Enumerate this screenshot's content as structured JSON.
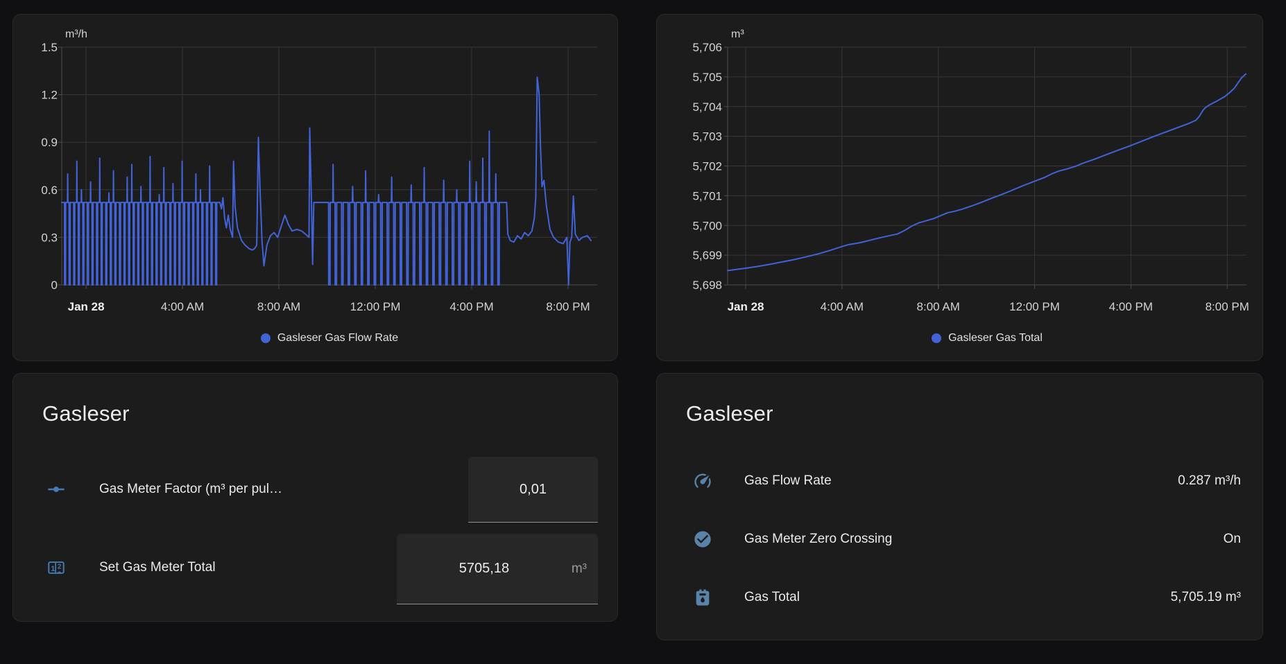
{
  "colors": {
    "series_blue": "#4263d8",
    "icon_blue": "#4479b2",
    "icon_blue_muted": "#5a83a9",
    "card_bg": "#1c1c1c",
    "page_bg": "#101012",
    "text": "#e3e3e3",
    "secondary_text": "#9b9b9b",
    "grid_line": "#373737"
  },
  "chart_data": [
    {
      "type": "line",
      "unit": "m³/h",
      "legend": "Gasleser Gas Flow Rate",
      "color": "#4263d8",
      "xlabels": [
        "Jan 28",
        "4:00 AM",
        "8:00 AM",
        "12:00 PM",
        "4:00 PM",
        "8:00 PM"
      ],
      "xticks_hours": [
        0,
        4,
        8,
        12,
        16,
        20
      ],
      "ylabels": [
        "1.5",
        "1.2",
        "0.9",
        "0.6",
        "0.3",
        "0"
      ],
      "ylim": [
        0,
        1.5
      ],
      "xlim": [
        -1.01,
        21.21
      ],
      "grid": true,
      "legend_position": "bottom",
      "series": [
        {
          "kind": "pulses",
          "from": -1.01,
          "to": 5.55,
          "period": 0.19,
          "base": 0.52,
          "low": 0,
          "heights": [
            0.52,
            0.7,
            0.52,
            0.78,
            0.6,
            0.52,
            0.65,
            0.52,
            0.8,
            0.52,
            0.58,
            0.72,
            0.52,
            0.52,
            0.68,
            0.76,
            0.52,
            0.62,
            0.52,
            0.81,
            0.52,
            0.57,
            0.74,
            0.52,
            0.64,
            0.52,
            0.78,
            0.52,
            0.52,
            0.7,
            0.6,
            0.52,
            0.75,
            0.52,
            0.66,
            0.52
          ]
        },
        {
          "kind": "points",
          "points": [
            [
              5.55,
              0.52
            ],
            [
              5.62,
              0.48
            ],
            [
              5.68,
              0.55
            ],
            [
              5.75,
              0.42
            ],
            [
              5.82,
              0.36
            ],
            [
              5.9,
              0.44
            ],
            [
              5.98,
              0.35
            ],
            [
              6.08,
              0.3
            ],
            [
              6.12,
              0.78
            ],
            [
              6.18,
              0.5
            ],
            [
              6.28,
              0.36
            ],
            [
              6.45,
              0.28
            ],
            [
              6.6,
              0.25
            ],
            [
              6.75,
              0.23
            ],
            [
              6.9,
              0.22
            ],
            [
              7.0,
              0.23
            ],
            [
              7.08,
              0.25
            ],
            [
              7.15,
              0.93
            ],
            [
              7.22,
              0.6
            ],
            [
              7.3,
              0.28
            ],
            [
              7.38,
              0.12
            ],
            [
              7.5,
              0.25
            ],
            [
              7.65,
              0.31
            ],
            [
              7.8,
              0.33
            ],
            [
              7.95,
              0.3
            ],
            [
              8.1,
              0.37
            ],
            [
              8.25,
              0.44
            ],
            [
              8.4,
              0.38
            ],
            [
              8.55,
              0.34
            ],
            [
              8.75,
              0.35
            ],
            [
              8.95,
              0.34
            ],
            [
              9.1,
              0.32
            ],
            [
              9.25,
              0.3
            ],
            [
              9.28,
              0.99
            ],
            [
              9.35,
              0.55
            ],
            [
              9.4,
              0.13
            ],
            [
              9.45,
              0.52
            ],
            [
              9.6,
              0.52
            ],
            [
              9.75,
              0.52
            ],
            [
              9.88,
              0.52
            ]
          ]
        },
        {
          "kind": "pulses",
          "from": 9.9,
          "to": 17.3,
          "period": 0.27,
          "base": 0.52,
          "low": 0,
          "heights": [
            0.52,
            0.76,
            0.52,
            0.52,
            0.62,
            0.52,
            0.72,
            0.52,
            0.57,
            0.52,
            0.68,
            0.52,
            0.52,
            0.63,
            0.52,
            0.74,
            0.52,
            0.52,
            0.66,
            0.52,
            0.6,
            0.52,
            0.78,
            0.65,
            0.8,
            0.97,
            0.7,
            0.62
          ]
        },
        {
          "kind": "points",
          "points": [
            [
              17.45,
              0.52
            ],
            [
              17.5,
              0.32
            ],
            [
              17.6,
              0.28
            ],
            [
              17.75,
              0.27
            ],
            [
              17.9,
              0.31
            ],
            [
              18.05,
              0.29
            ],
            [
              18.2,
              0.33
            ],
            [
              18.35,
              0.31
            ],
            [
              18.5,
              0.34
            ],
            [
              18.6,
              0.42
            ],
            [
              18.66,
              0.55
            ],
            [
              18.72,
              1.31
            ],
            [
              18.8,
              1.2
            ],
            [
              18.85,
              0.9
            ],
            [
              18.92,
              0.62
            ],
            [
              19.0,
              0.66
            ],
            [
              19.1,
              0.5
            ],
            [
              19.25,
              0.35
            ],
            [
              19.4,
              0.3
            ],
            [
              19.6,
              0.27
            ],
            [
              19.8,
              0.26
            ],
            [
              19.95,
              0.3
            ],
            [
              20.02,
              0.0
            ],
            [
              20.08,
              0.27
            ],
            [
              20.15,
              0.3
            ],
            [
              20.22,
              0.56
            ],
            [
              20.3,
              0.32
            ],
            [
              20.45,
              0.28
            ],
            [
              20.6,
              0.3
            ],
            [
              20.8,
              0.31
            ],
            [
              20.95,
              0.28
            ]
          ]
        }
      ]
    },
    {
      "type": "line",
      "unit": "m³",
      "legend": "Gasleser Gas Total",
      "color": "#4263d8",
      "xlabels": [
        "Jan 28",
        "4:00 AM",
        "8:00 AM",
        "12:00 PM",
        "4:00 PM",
        "8:00 PM"
      ],
      "xticks_hours": [
        0,
        4,
        8,
        12,
        16,
        20
      ],
      "ylabels": [
        "5,706",
        "5,705",
        "5,704",
        "5,703",
        "5,702",
        "5,701",
        "5,700",
        "5,699",
        "5,698"
      ],
      "ylim": [
        5698,
        5706
      ],
      "xlim": [
        -0.75,
        20.8
      ],
      "grid": true,
      "legend_position": "bottom",
      "series": [
        {
          "kind": "points",
          "points": [
            [
              -0.75,
              5698.48
            ],
            [
              0,
              5698.56
            ],
            [
              0.5,
              5698.62
            ],
            [
              1,
              5698.69
            ],
            [
              1.5,
              5698.77
            ],
            [
              2,
              5698.85
            ],
            [
              2.5,
              5698.94
            ],
            [
              3,
              5699.04
            ],
            [
              3.5,
              5699.16
            ],
            [
              4,
              5699.29
            ],
            [
              4.3,
              5699.36
            ],
            [
              4.7,
              5699.41
            ],
            [
              5,
              5699.47
            ],
            [
              5.5,
              5699.57
            ],
            [
              6,
              5699.66
            ],
            [
              6.3,
              5699.71
            ],
            [
              6.6,
              5699.83
            ],
            [
              6.9,
              5699.98
            ],
            [
              7.2,
              5700.09
            ],
            [
              7.5,
              5700.16
            ],
            [
              7.8,
              5700.23
            ],
            [
              8.1,
              5700.33
            ],
            [
              8.4,
              5700.43
            ],
            [
              8.7,
              5700.48
            ],
            [
              9,
              5700.55
            ],
            [
              9.4,
              5700.66
            ],
            [
              9.8,
              5700.78
            ],
            [
              10.2,
              5700.91
            ],
            [
              10.6,
              5701.03
            ],
            [
              11,
              5701.16
            ],
            [
              11.5,
              5701.33
            ],
            [
              12,
              5701.49
            ],
            [
              12.4,
              5701.61
            ],
            [
              12.7,
              5701.73
            ],
            [
              13,
              5701.83
            ],
            [
              13.3,
              5701.89
            ],
            [
              13.7,
              5701.99
            ],
            [
              14,
              5702.09
            ],
            [
              14.5,
              5702.23
            ],
            [
              15,
              5702.39
            ],
            [
              15.5,
              5702.54
            ],
            [
              16,
              5702.69
            ],
            [
              16.5,
              5702.85
            ],
            [
              17,
              5703.01
            ],
            [
              17.5,
              5703.16
            ],
            [
              18,
              5703.31
            ],
            [
              18.4,
              5703.43
            ],
            [
              18.7,
              5703.54
            ],
            [
              18.85,
              5703.68
            ],
            [
              19,
              5703.88
            ],
            [
              19.1,
              5703.97
            ],
            [
              19.3,
              5704.07
            ],
            [
              19.6,
              5704.2
            ],
            [
              19.9,
              5704.34
            ],
            [
              20.1,
              5704.47
            ],
            [
              20.3,
              5704.62
            ],
            [
              20.45,
              5704.8
            ],
            [
              20.6,
              5704.97
            ],
            [
              20.72,
              5705.06
            ],
            [
              20.78,
              5705.1
            ]
          ]
        }
      ]
    }
  ],
  "controls_card": {
    "title": "Gasleser",
    "rows": [
      {
        "icon": "ray-vertex-icon",
        "label": "Gas Meter Factor (m³ per pul…",
        "value": "0,01",
        "suffix": ""
      },
      {
        "icon": "counter-icon",
        "label": "Set Gas Meter Total",
        "value": "5705,18",
        "suffix": "m³"
      }
    ]
  },
  "status_card": {
    "title": "Gasleser",
    "rows": [
      {
        "icon": "gauge-icon",
        "label": "Gas Flow Rate",
        "value": "0.287 m³/h"
      },
      {
        "icon": "check-circle-icon",
        "label": "Gas Meter Zero Crossing",
        "value": "On"
      },
      {
        "icon": "gas-meter-icon",
        "label": "Gas Total",
        "value": "5,705.19 m³"
      }
    ]
  }
}
